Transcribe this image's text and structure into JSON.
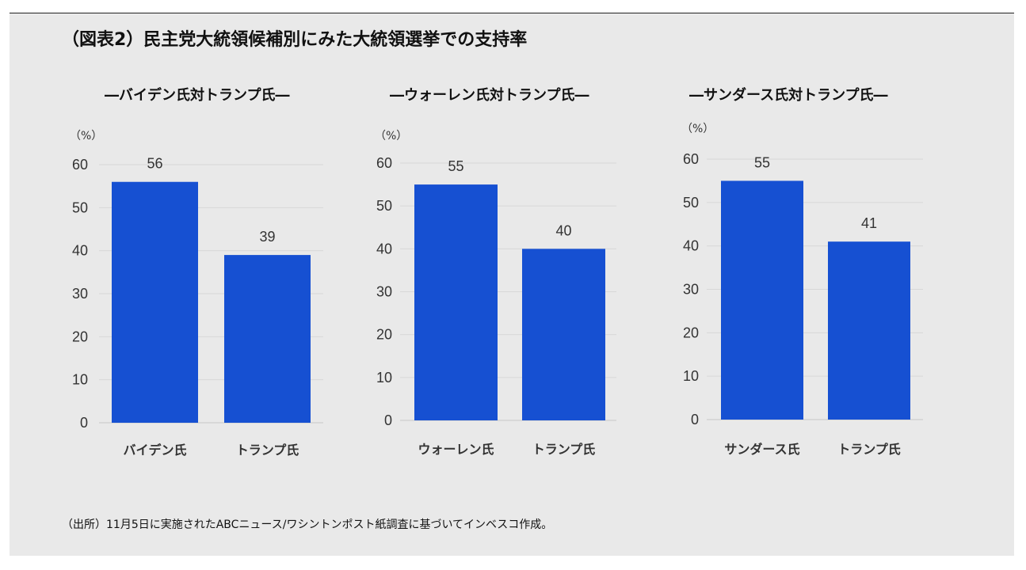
{
  "title": "（図表2）民主党大統領候補別にみた大統領選挙での支持率",
  "source": "（出所）11月5日に実施されたABCニュース/ワシントンポスト紙調査に基づいてインベスコ作成。",
  "colors": {
    "bar": "#1650d2",
    "background": "#e9e9e9",
    "grid": "#d8d8d8"
  },
  "chart_data": [
    {
      "type": "bar",
      "title": "―バイデン氏対トランプ氏―",
      "unit": "（%）",
      "categories": [
        "バイデン氏",
        "トランプ氏"
      ],
      "values": [
        56,
        39
      ],
      "ylim": [
        0,
        60
      ],
      "yticks": [
        0,
        10,
        20,
        30,
        40,
        50,
        60
      ],
      "grid": true
    },
    {
      "type": "bar",
      "title": "―ウォーレン氏対トランプ氏―",
      "unit": "（%）",
      "categories": [
        "ウォーレン氏",
        "トランプ氏"
      ],
      "values": [
        55,
        40
      ],
      "ylim": [
        0,
        60
      ],
      "yticks": [
        0,
        10,
        20,
        30,
        40,
        50,
        60
      ],
      "grid": true
    },
    {
      "type": "bar",
      "title": "―サンダース氏対トランプ氏―",
      "unit": "（%）",
      "categories": [
        "サンダース氏",
        "トランプ氏"
      ],
      "values": [
        55,
        41
      ],
      "ylim": [
        0,
        60
      ],
      "yticks": [
        0,
        10,
        20,
        30,
        40,
        50,
        60
      ],
      "grid": true
    }
  ]
}
